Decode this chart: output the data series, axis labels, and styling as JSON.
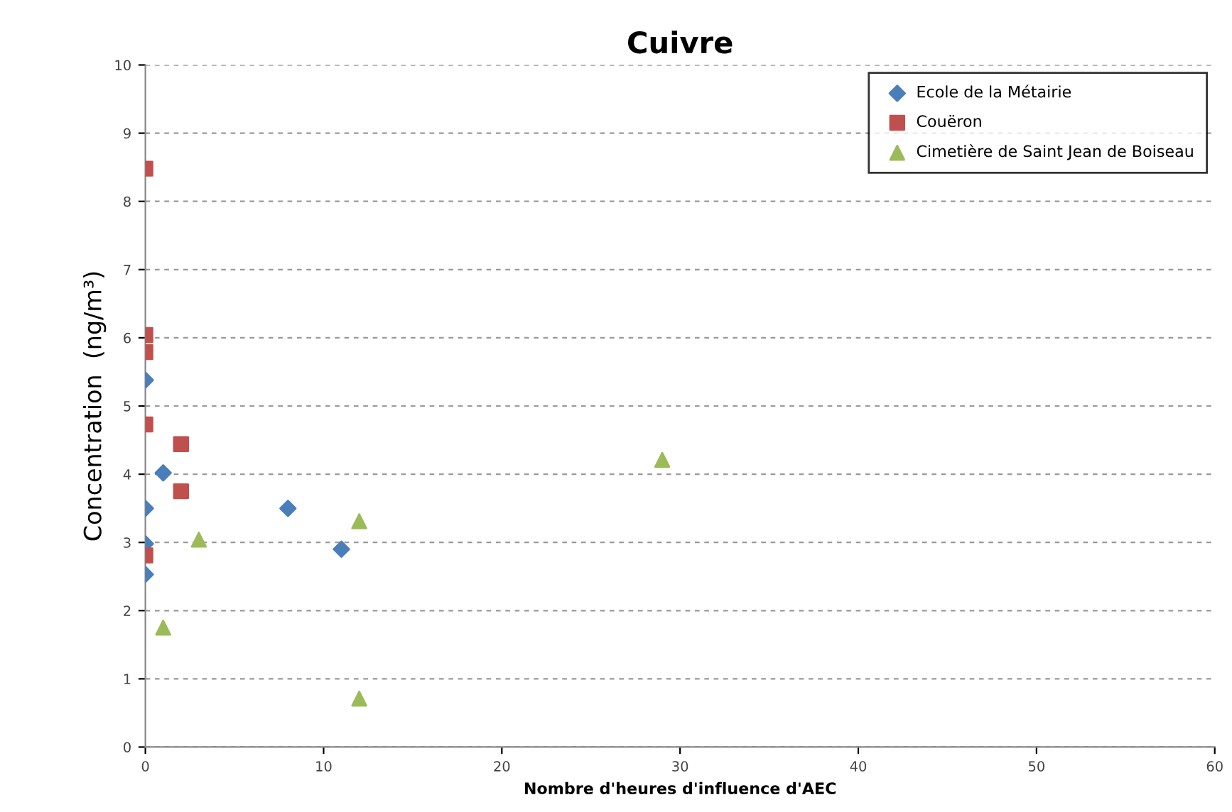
{
  "chart_data": {
    "type": "scatter",
    "title": "Cuivre",
    "xlabel": "Nombre d'heures d'influence d'AEC",
    "ylabel": "Concentration  (ng/m³)",
    "xlim": [
      0,
      60
    ],
    "xticks": [
      0,
      10,
      20,
      30,
      40,
      50,
      60
    ],
    "ylim": [
      0,
      10
    ],
    "yticks": [
      0,
      1,
      2,
      3,
      4,
      5,
      6,
      7,
      8,
      9,
      10
    ],
    "grid": "y",
    "legend": "top right",
    "series": [
      {
        "name": "Ecole de la Métairie",
        "color": "#4a7ebb",
        "marker": "diamond",
        "x": [
          0,
          0,
          0,
          0,
          1,
          8,
          11
        ],
        "values": [
          5.38,
          3.5,
          2.98,
          2.53,
          4.02,
          3.5,
          2.9
        ]
      },
      {
        "name": "Couëron",
        "color": "#c0504d",
        "marker": "square",
        "x": [
          0,
          0,
          0,
          0,
          0,
          2,
          2
        ],
        "values": [
          8.48,
          6.04,
          5.79,
          4.73,
          2.81,
          4.44,
          3.75
        ]
      },
      {
        "name": "Cimetière de Saint Jean de Boiseau",
        "color": "#9bbb59",
        "marker": "triangle",
        "x": [
          1,
          3,
          12,
          12,
          29
        ],
        "values": [
          1.75,
          3.04,
          3.31,
          0.71,
          4.21
        ]
      }
    ]
  }
}
